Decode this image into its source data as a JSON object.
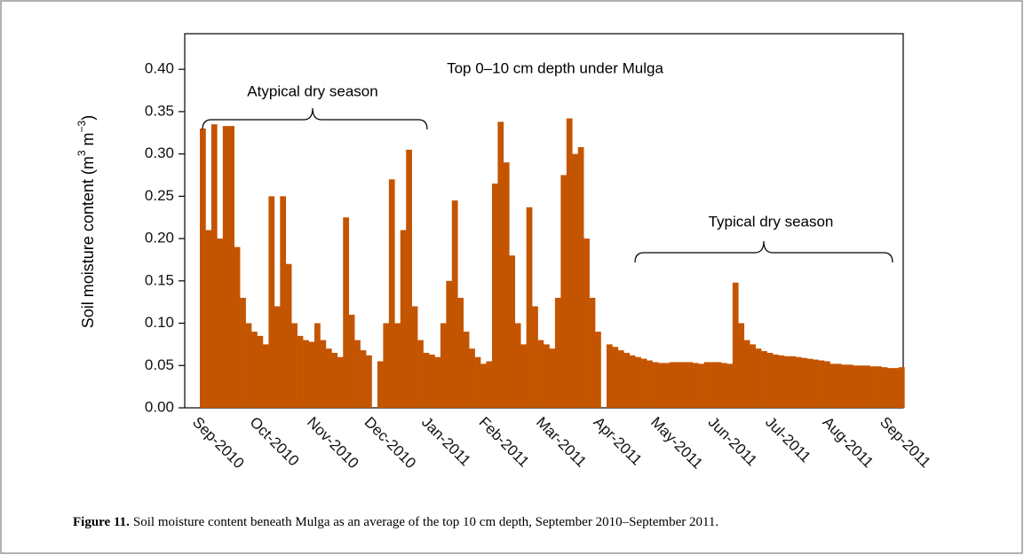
{
  "chart_data": {
    "type": "bar",
    "title": "Top 0–10 cm depth under Mulga",
    "annotations": [
      "Atypical dry season",
      "Typical dry season"
    ],
    "ylabel_parts": [
      "Soil moisture content (m",
      "3",
      " m",
      "−3",
      ")"
    ],
    "color": "#c45500",
    "categories": [
      "Sep-2010",
      null,
      null,
      null,
      null,
      null,
      null,
      null,
      null,
      null,
      "Oct-2010",
      null,
      null,
      null,
      null,
      null,
      null,
      null,
      null,
      null,
      "Nov-2010",
      null,
      null,
      null,
      null,
      null,
      null,
      null,
      null,
      null,
      "Dec-2010",
      null,
      null,
      null,
      null,
      null,
      null,
      null,
      null,
      null,
      "Jan-2011",
      null,
      null,
      null,
      null,
      null,
      null,
      null,
      null,
      null,
      "Feb-2011",
      null,
      null,
      null,
      null,
      null,
      null,
      null,
      null,
      null,
      "Mar-2011",
      null,
      null,
      null,
      null,
      null,
      null,
      null,
      null,
      null,
      "Apr-2011",
      null,
      null,
      null,
      null,
      null,
      null,
      null,
      null,
      null,
      "May-2011",
      null,
      null,
      null,
      null,
      null,
      null,
      null,
      null,
      null,
      "Jun-2011",
      null,
      null,
      null,
      null,
      null,
      null,
      null,
      null,
      null,
      "Jul-2011",
      null,
      null,
      null,
      null,
      null,
      null,
      null,
      null,
      null,
      "Aug-2011",
      null,
      null,
      null,
      null,
      null,
      null,
      null,
      null,
      null,
      "Sep-2011",
      null,
      null
    ],
    "values": [
      0.33,
      0.21,
      0.335,
      0.2,
      0.333,
      0.333,
      0.19,
      0.13,
      0.1,
      0.09,
      0.085,
      0.075,
      0.25,
      0.12,
      0.25,
      0.17,
      0.1,
      0.085,
      0.08,
      0.078,
      0.1,
      0.08,
      0.07,
      0.065,
      0.06,
      0.225,
      0.11,
      0.08,
      0.068,
      0.062,
      0,
      0.055,
      0.1,
      0.27,
      0.1,
      0.21,
      0.305,
      0.12,
      0.08,
      0.065,
      0.063,
      0.06,
      0.1,
      0.15,
      0.245,
      0.13,
      0.09,
      0.07,
      0.06,
      0.052,
      0.055,
      0.265,
      0.338,
      0.29,
      0.18,
      0.1,
      0.075,
      0.237,
      0.12,
      0.08,
      0.075,
      0.07,
      0.13,
      0.275,
      0.342,
      0.3,
      0.308,
      0.2,
      0.13,
      0.09,
      0,
      0.075,
      0.072,
      0.068,
      0.065,
      0.062,
      0.06,
      0.058,
      0.056,
      0.054,
      0.053,
      0.053,
      0.054,
      0.054,
      0.054,
      0.054,
      0.053,
      0.052,
      0.054,
      0.054,
      0.054,
      0.053,
      0.052,
      0.148,
      0.1,
      0.08,
      0.075,
      0.07,
      0.067,
      0.065,
      0.063,
      0.062,
      0.061,
      0.061,
      0.06,
      0.059,
      0.058,
      0.057,
      0.056,
      0.055,
      0.052,
      0.052,
      0.051,
      0.051,
      0.05,
      0.05,
      0.05,
      0.049,
      0.049,
      0.048,
      0.047,
      0.047,
      0.048
    ],
    "ylim": [
      0,
      0.44
    ],
    "yticks": [
      {
        "value": 0,
        "label": "0.00"
      },
      {
        "value": 0.05,
        "label": "0.05"
      },
      {
        "value": 0.1,
        "label": "0.10"
      },
      {
        "value": 0.15,
        "label": "0.15"
      },
      {
        "value": 0.2,
        "label": "0.20"
      },
      {
        "value": 0.25,
        "label": "0.25"
      },
      {
        "value": 0.3,
        "label": "0.30"
      },
      {
        "value": 0.35,
        "label": "0.35"
      },
      {
        "value": 0.4,
        "label": "0.40"
      }
    ]
  },
  "caption": {
    "label": "Figure 11.",
    "text": "Soil moisture content beneath Mulga as an average of the top 10 cm depth, September 2010–September 2011."
  }
}
